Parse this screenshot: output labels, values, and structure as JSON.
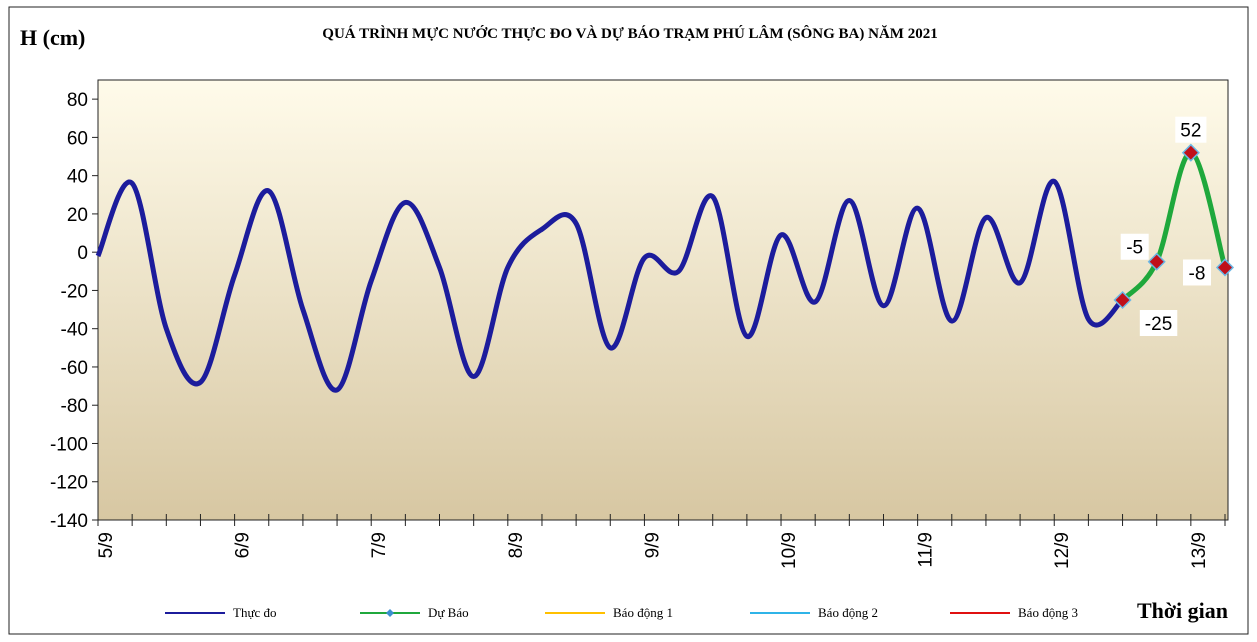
{
  "chart_data": {
    "type": "line",
    "title": "QUÁ TRÌNH MỰC NƯỚC THỰC ĐO VÀ DỰ BÁO TRẠM PHÚ LÂM (SÔNG BA) NĂM 2021",
    "y_label": "H (cm)",
    "x_label": "Thời gian",
    "categories": [
      "5/9",
      null,
      null,
      null,
      "6/9",
      null,
      null,
      null,
      "7/9",
      null,
      null,
      null,
      "8/9",
      null,
      null,
      null,
      "9/9",
      null,
      null,
      null,
      "10/9",
      null,
      null,
      null,
      "11/9",
      null,
      null,
      null,
      "12/9",
      null,
      null,
      null,
      "13/9",
      null
    ],
    "series": [
      {
        "name": "Thực đo",
        "color": "#1c1c9c",
        "values": [
          -2,
          36,
          -40,
          -68,
          -12,
          32,
          -30,
          -72,
          -15,
          26,
          -8,
          -65,
          -8,
          12,
          15,
          -50,
          -3,
          -10,
          29,
          -44,
          9,
          -26,
          27,
          -28,
          23,
          -36,
          18,
          -16,
          37,
          -35,
          -25,
          null,
          null,
          null
        ]
      },
      {
        "name": "Dự Báo",
        "color": "#1fa83c",
        "marker": true,
        "values": [
          null,
          null,
          null,
          null,
          null,
          null,
          null,
          null,
          null,
          null,
          null,
          null,
          null,
          null,
          null,
          null,
          null,
          null,
          null,
          null,
          null,
          null,
          null,
          null,
          null,
          null,
          null,
          null,
          null,
          null,
          -25,
          -5,
          52,
          -8
        ]
      },
      {
        "name": "Báo động 1",
        "color": "#ffc000",
        "values": [
          null,
          null,
          null,
          null,
          null,
          null,
          null,
          null,
          null,
          null,
          null,
          null,
          null,
          null,
          null,
          null,
          null,
          null,
          null,
          null,
          null,
          null,
          null,
          null,
          null,
          null,
          null,
          null,
          null,
          null,
          null,
          null,
          null,
          null
        ]
      },
      {
        "name": "Báo động 2",
        "color": "#2fb4e8",
        "values": [
          null,
          null,
          null,
          null,
          null,
          null,
          null,
          null,
          null,
          null,
          null,
          null,
          null,
          null,
          null,
          null,
          null,
          null,
          null,
          null,
          null,
          null,
          null,
          null,
          null,
          null,
          null,
          null,
          null,
          null,
          null,
          null,
          null,
          null
        ]
      },
      {
        "name": "Báo động 3",
        "color": "#e01010",
        "values": [
          null,
          null,
          null,
          null,
          null,
          null,
          null,
          null,
          null,
          null,
          null,
          null,
          null,
          null,
          null,
          null,
          null,
          null,
          null,
          null,
          null,
          null,
          null,
          null,
          null,
          null,
          null,
          null,
          null,
          null,
          null,
          null,
          null,
          null
        ]
      }
    ],
    "ylim": [
      -140,
      90
    ],
    "yticks": [
      -140,
      -120,
      -100,
      -80,
      -60,
      -40,
      -20,
      0,
      20,
      40,
      60,
      80
    ]
  }
}
